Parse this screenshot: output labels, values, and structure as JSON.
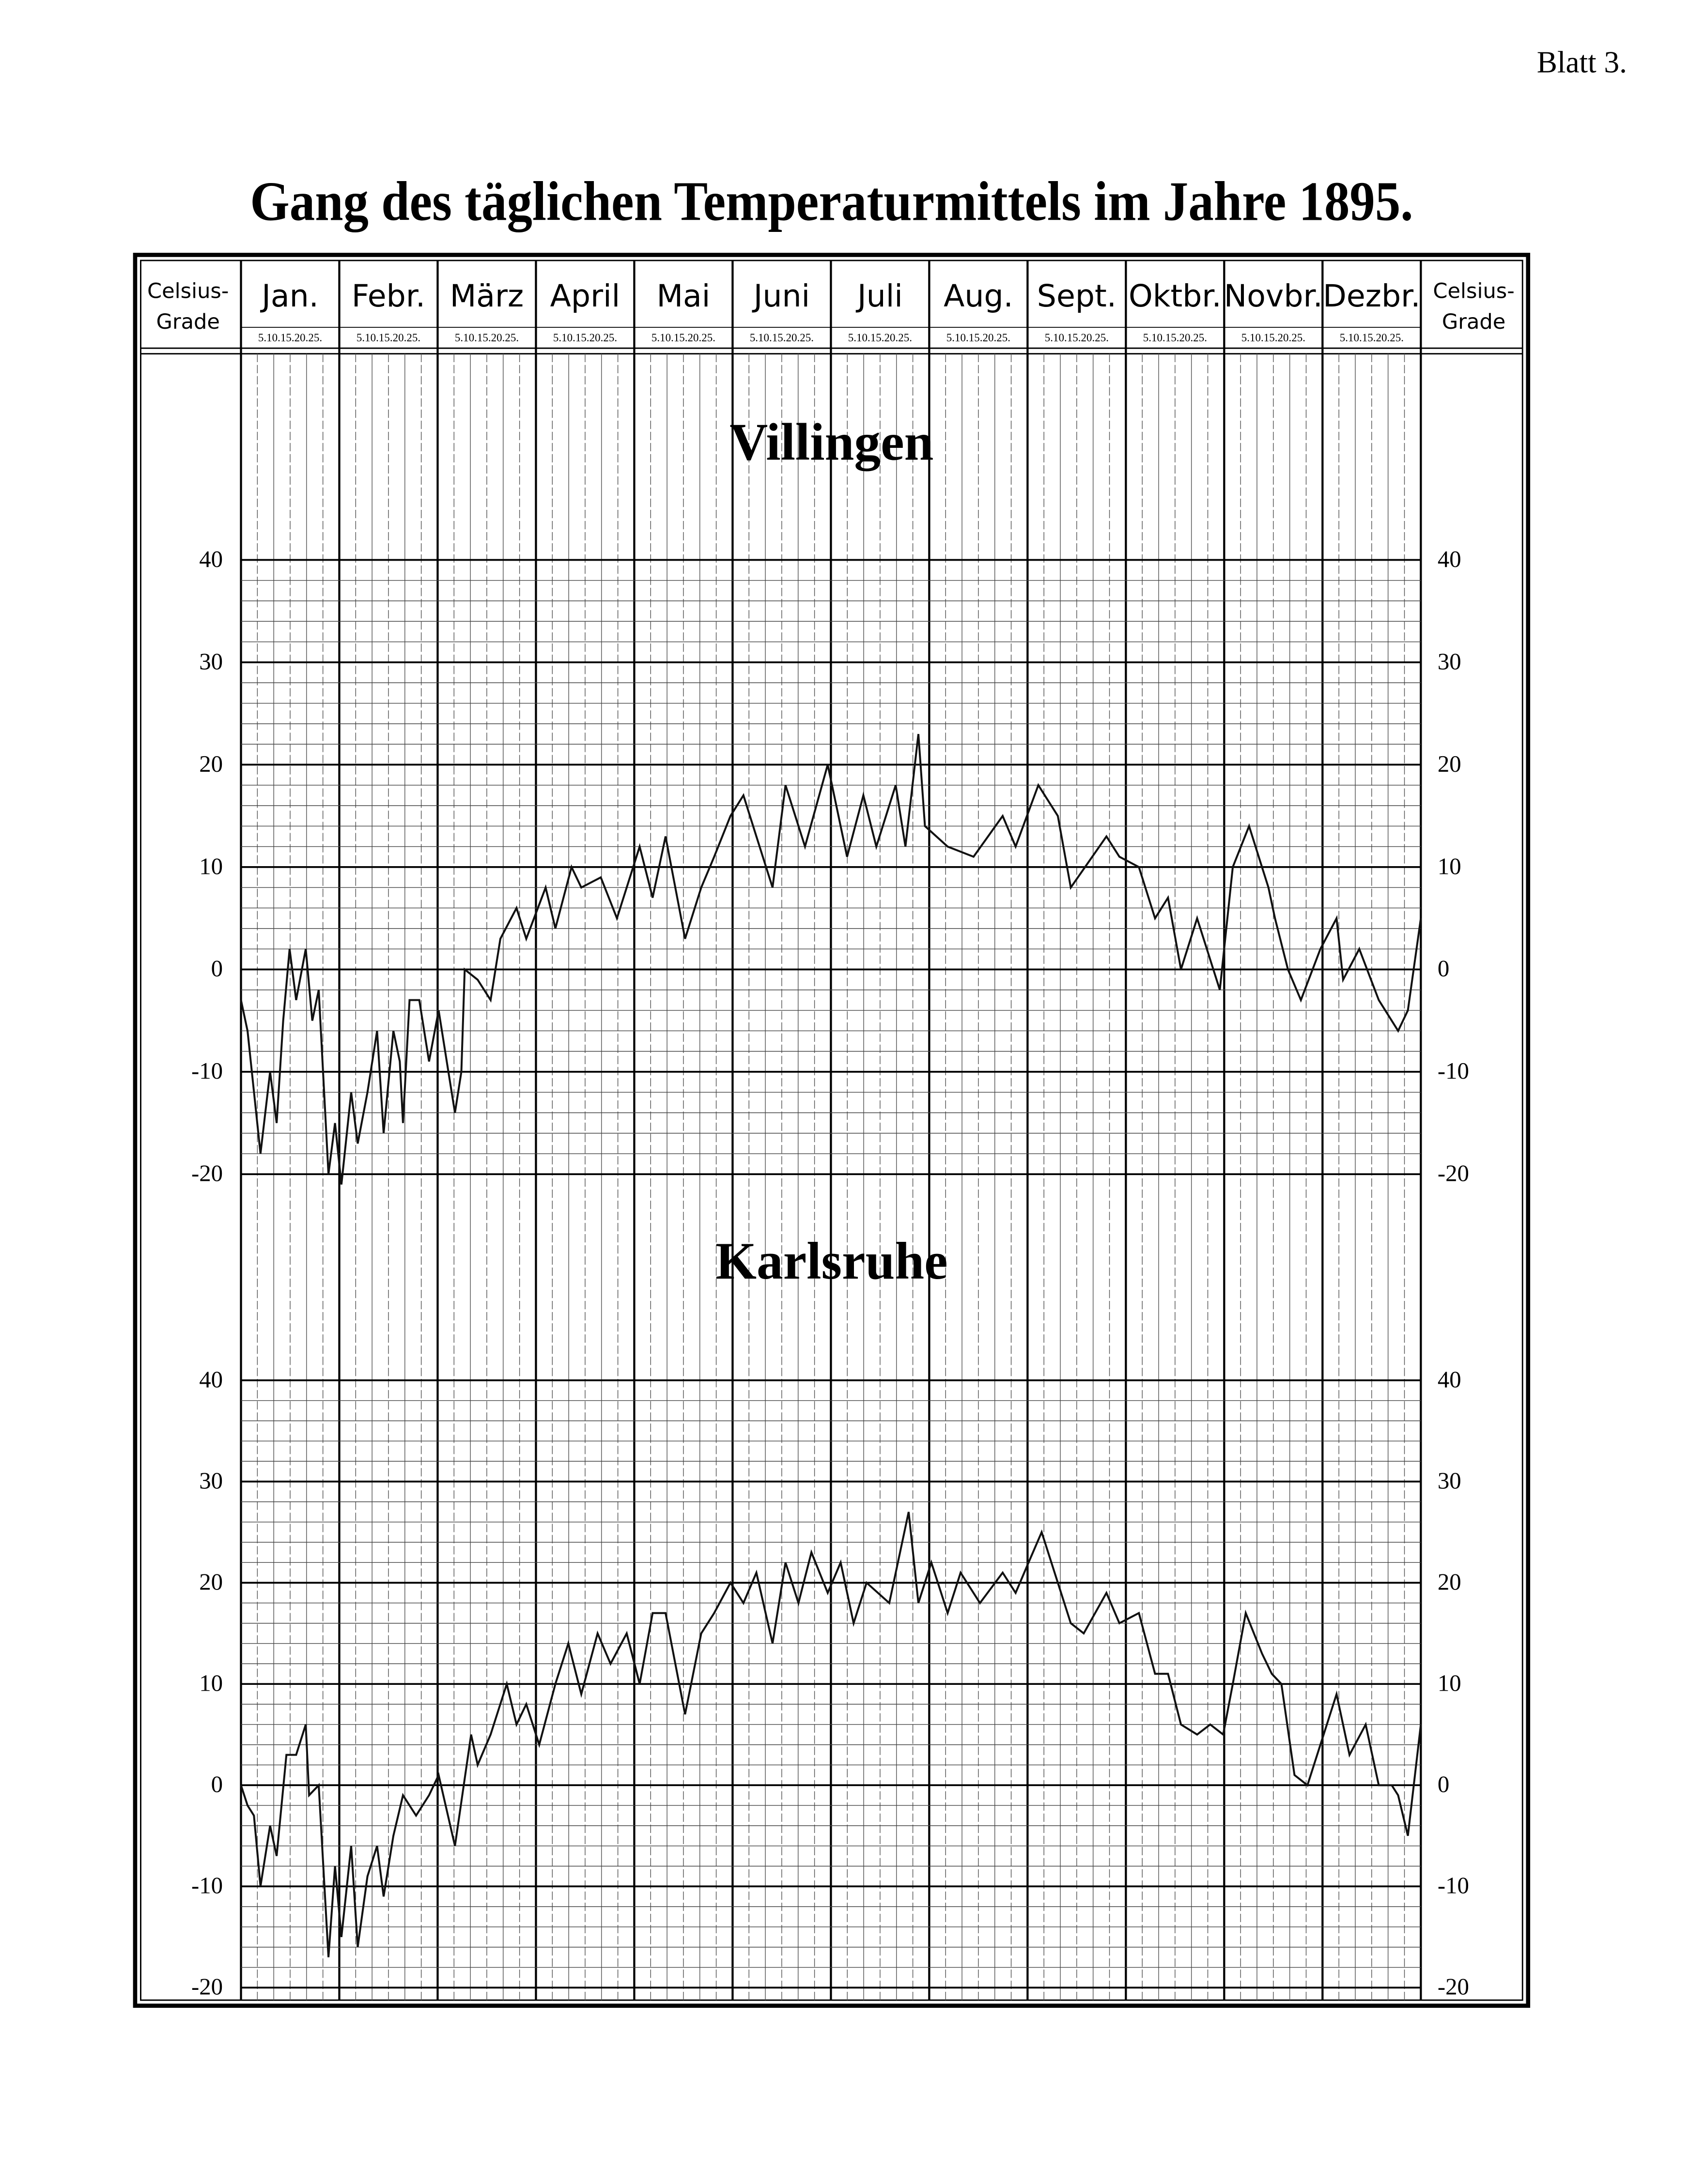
{
  "page_label": "Blatt 3.",
  "title": "Gang des täglichen Temperaturmittels im Jahre 1895.",
  "unit_label": [
    "Celsius-",
    "Grade"
  ],
  "months": [
    "Jan.",
    "Febr.",
    "März",
    "April",
    "Mai",
    "Juni",
    "Juli",
    "Aug.",
    "Sept.",
    "Oktbr.",
    "Novbr.",
    "Dezbr."
  ],
  "day_marks": "5.10.15.20.25.",
  "chart_data": [
    {
      "type": "line",
      "title": "Villingen",
      "color": "#111111",
      "grid": true,
      "xlim": [
        1,
        365
      ],
      "ylim": [
        -20,
        40
      ],
      "yticks": [
        -20,
        -10,
        0,
        10,
        20,
        30,
        40
      ],
      "x": [
        1,
        3,
        7,
        10,
        12,
        14,
        16,
        18,
        21,
        23,
        25,
        28,
        30,
        32,
        35,
        37,
        40,
        43,
        45,
        48,
        50,
        51,
        53,
        56,
        59,
        62,
        65,
        67,
        69,
        70,
        74,
        78,
        81,
        86,
        89,
        95,
        98,
        103,
        106,
        112,
        117,
        124,
        128,
        132,
        138,
        143,
        147,
        152,
        156,
        160,
        165,
        169,
        175,
        182,
        188,
        193,
        197,
        203,
        206,
        210,
        212,
        219,
        227,
        236,
        240,
        247,
        253,
        257,
        268,
        272,
        278,
        283,
        287,
        291,
        296,
        303,
        307,
        312,
        318,
        320,
        324,
        328,
        334,
        339,
        341,
        346,
        352,
        358,
        361,
        365
      ],
      "values": [
        -3,
        -6,
        -18,
        -10,
        -15,
        -5,
        2,
        -3,
        2,
        -5,
        -2,
        -20,
        -15,
        -21,
        -12,
        -17,
        -12,
        -6,
        -16,
        -6,
        -9,
        -15,
        -3,
        -3,
        -9,
        -4,
        -10,
        -14,
        -10,
        0,
        -1,
        -3,
        3,
        6,
        3,
        8,
        4,
        10,
        8,
        9,
        5,
        12,
        7,
        13,
        3,
        8,
        11,
        15,
        17,
        13,
        8,
        18,
        12,
        20,
        11,
        17,
        12,
        18,
        12,
        23,
        14,
        12,
        11,
        15,
        12,
        18,
        15,
        8,
        13,
        11,
        10,
        5,
        7,
        0,
        5,
        -2,
        10,
        14,
        8,
        5,
        0,
        -3,
        2,
        5,
        -1,
        2,
        -3,
        -6,
        -4,
        5
      ]
    },
    {
      "type": "line",
      "title": "Karlsruhe",
      "color": "#111111",
      "grid": true,
      "xlim": [
        1,
        365
      ],
      "ylim": [
        -20,
        40
      ],
      "yticks": [
        -20,
        -10,
        0,
        10,
        20,
        30,
        40
      ],
      "x": [
        1,
        3,
        5,
        7,
        10,
        12,
        15,
        18,
        21,
        22,
        25,
        28,
        30,
        32,
        35,
        37,
        40,
        43,
        45,
        48,
        51,
        55,
        59,
        62,
        67,
        72,
        74,
        78,
        83,
        86,
        89,
        93,
        98,
        102,
        106,
        111,
        115,
        120,
        124,
        128,
        132,
        138,
        143,
        147,
        152,
        156,
        160,
        165,
        169,
        173,
        177,
        182,
        186,
        190,
        194,
        201,
        207,
        210,
        214,
        219,
        223,
        229,
        236,
        240,
        244,
        248,
        253,
        257,
        261,
        268,
        272,
        278,
        283,
        287,
        291,
        296,
        300,
        304,
        307,
        311,
        316,
        319,
        322,
        326,
        330,
        334,
        339,
        343,
        348,
        352,
        356,
        358,
        361,
        365
      ],
      "values": [
        0,
        -2,
        -3,
        -10,
        -4,
        -7,
        3,
        3,
        6,
        -1,
        0,
        -17,
        -8,
        -15,
        -6,
        -16,
        -9,
        -6,
        -11,
        -5,
        -1,
        -3,
        -1,
        1,
        -6,
        5,
        2,
        5,
        10,
        6,
        8,
        4,
        10,
        14,
        9,
        15,
        12,
        15,
        10,
        17,
        17,
        7,
        15,
        17,
        20,
        18,
        21,
        14,
        22,
        18,
        23,
        19,
        22,
        16,
        20,
        18,
        27,
        18,
        22,
        17,
        21,
        18,
        21,
        19,
        22,
        25,
        20,
        16,
        15,
        19,
        16,
        17,
        11,
        11,
        6,
        5,
        6,
        5,
        10,
        17,
        13,
        11,
        10,
        1,
        0,
        4,
        9,
        3,
        6,
        0,
        0,
        -1,
        -5,
        6
      ]
    }
  ]
}
